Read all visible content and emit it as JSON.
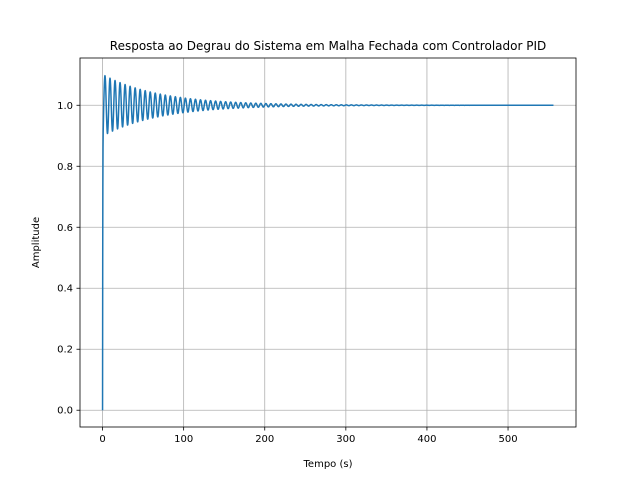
{
  "chart_data": {
    "type": "line",
    "title": "Resposta ao Degrau do Sistema em Malha Fechada com Controlador PID",
    "xlabel": "Tempo (s)",
    "ylabel": "Amplitude",
    "xlim": [
      -27.8,
      583.8
    ],
    "ylim": [
      -0.055,
      1.155
    ],
    "xticks": [
      0,
      100,
      200,
      300,
      400,
      500
    ],
    "xtick_labels": [
      "0",
      "100",
      "200",
      "300",
      "400",
      "500"
    ],
    "yticks": [
      0.0,
      0.2,
      0.4,
      0.6,
      0.8,
      1.0
    ],
    "ytick_labels": [
      "0.0",
      "0.2",
      "0.4",
      "0.6",
      "0.8",
      "1.0"
    ],
    "grid": true,
    "legend": "none",
    "series": [
      {
        "color": "#1f77b4",
        "t_end": 556,
        "final_value": 1.0,
        "first_peak": 1.097,
        "first_peak_time": 3.0,
        "first_trough": 0.905,
        "oscillation_period": 6.2,
        "decay_time_constant": 70,
        "rise_time": 0.7,
        "samples": [
          [
            0.0,
            0.0
          ],
          [
            0.4,
            0.55
          ],
          [
            0.8,
            0.86
          ],
          [
            1.5,
            0.98
          ],
          [
            3.0,
            1.097
          ],
          [
            6.1,
            0.905
          ],
          [
            9.2,
            1.093
          ],
          [
            12.3,
            0.909
          ],
          [
            50.0,
            1.06
          ],
          [
            100.0,
            1.024
          ],
          [
            150.0,
            1.012
          ],
          [
            200.0,
            1.006
          ],
          [
            250.0,
            1.002
          ],
          [
            300.0,
            1.0
          ],
          [
            400.0,
            1.0
          ],
          [
            556.0,
            1.0
          ]
        ]
      }
    ]
  }
}
